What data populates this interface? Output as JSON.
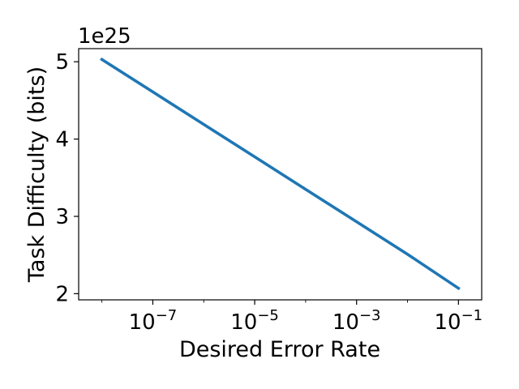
{
  "chart_data": {
    "type": "line",
    "xlabel": "Desired Error Rate",
    "ylabel": "Task Difficulty (bits)",
    "x_scale": "log",
    "y_multiplier_label": "1e25",
    "x": [
      1e-08,
      1e-07,
      1e-06,
      1e-05,
      0.0001,
      0.001,
      0.01,
      0.1
    ],
    "series": [
      {
        "values": [
          5.03,
          4.61,
          4.19,
          3.77,
          3.35,
          2.93,
          2.51,
          2.07
        ],
        "color": "#1f77b4"
      }
    ],
    "xlim": [
      3.5e-09,
      0.286
    ],
    "ylim": [
      1.92,
      5.17
    ],
    "x_ticks": [
      {
        "base": "10",
        "exp": "−7",
        "value": 1e-07
      },
      {
        "base": "10",
        "exp": "−5",
        "value": 1e-05
      },
      {
        "base": "10",
        "exp": "−3",
        "value": 0.001
      },
      {
        "base": "10",
        "exp": "−1",
        "value": 0.1
      }
    ],
    "y_ticks": [
      {
        "label": "2",
        "value": 2
      },
      {
        "label": "3",
        "value": 3
      },
      {
        "label": "4",
        "value": 4
      },
      {
        "label": "5",
        "value": 5
      }
    ],
    "grid": false,
    "legend": "none"
  }
}
